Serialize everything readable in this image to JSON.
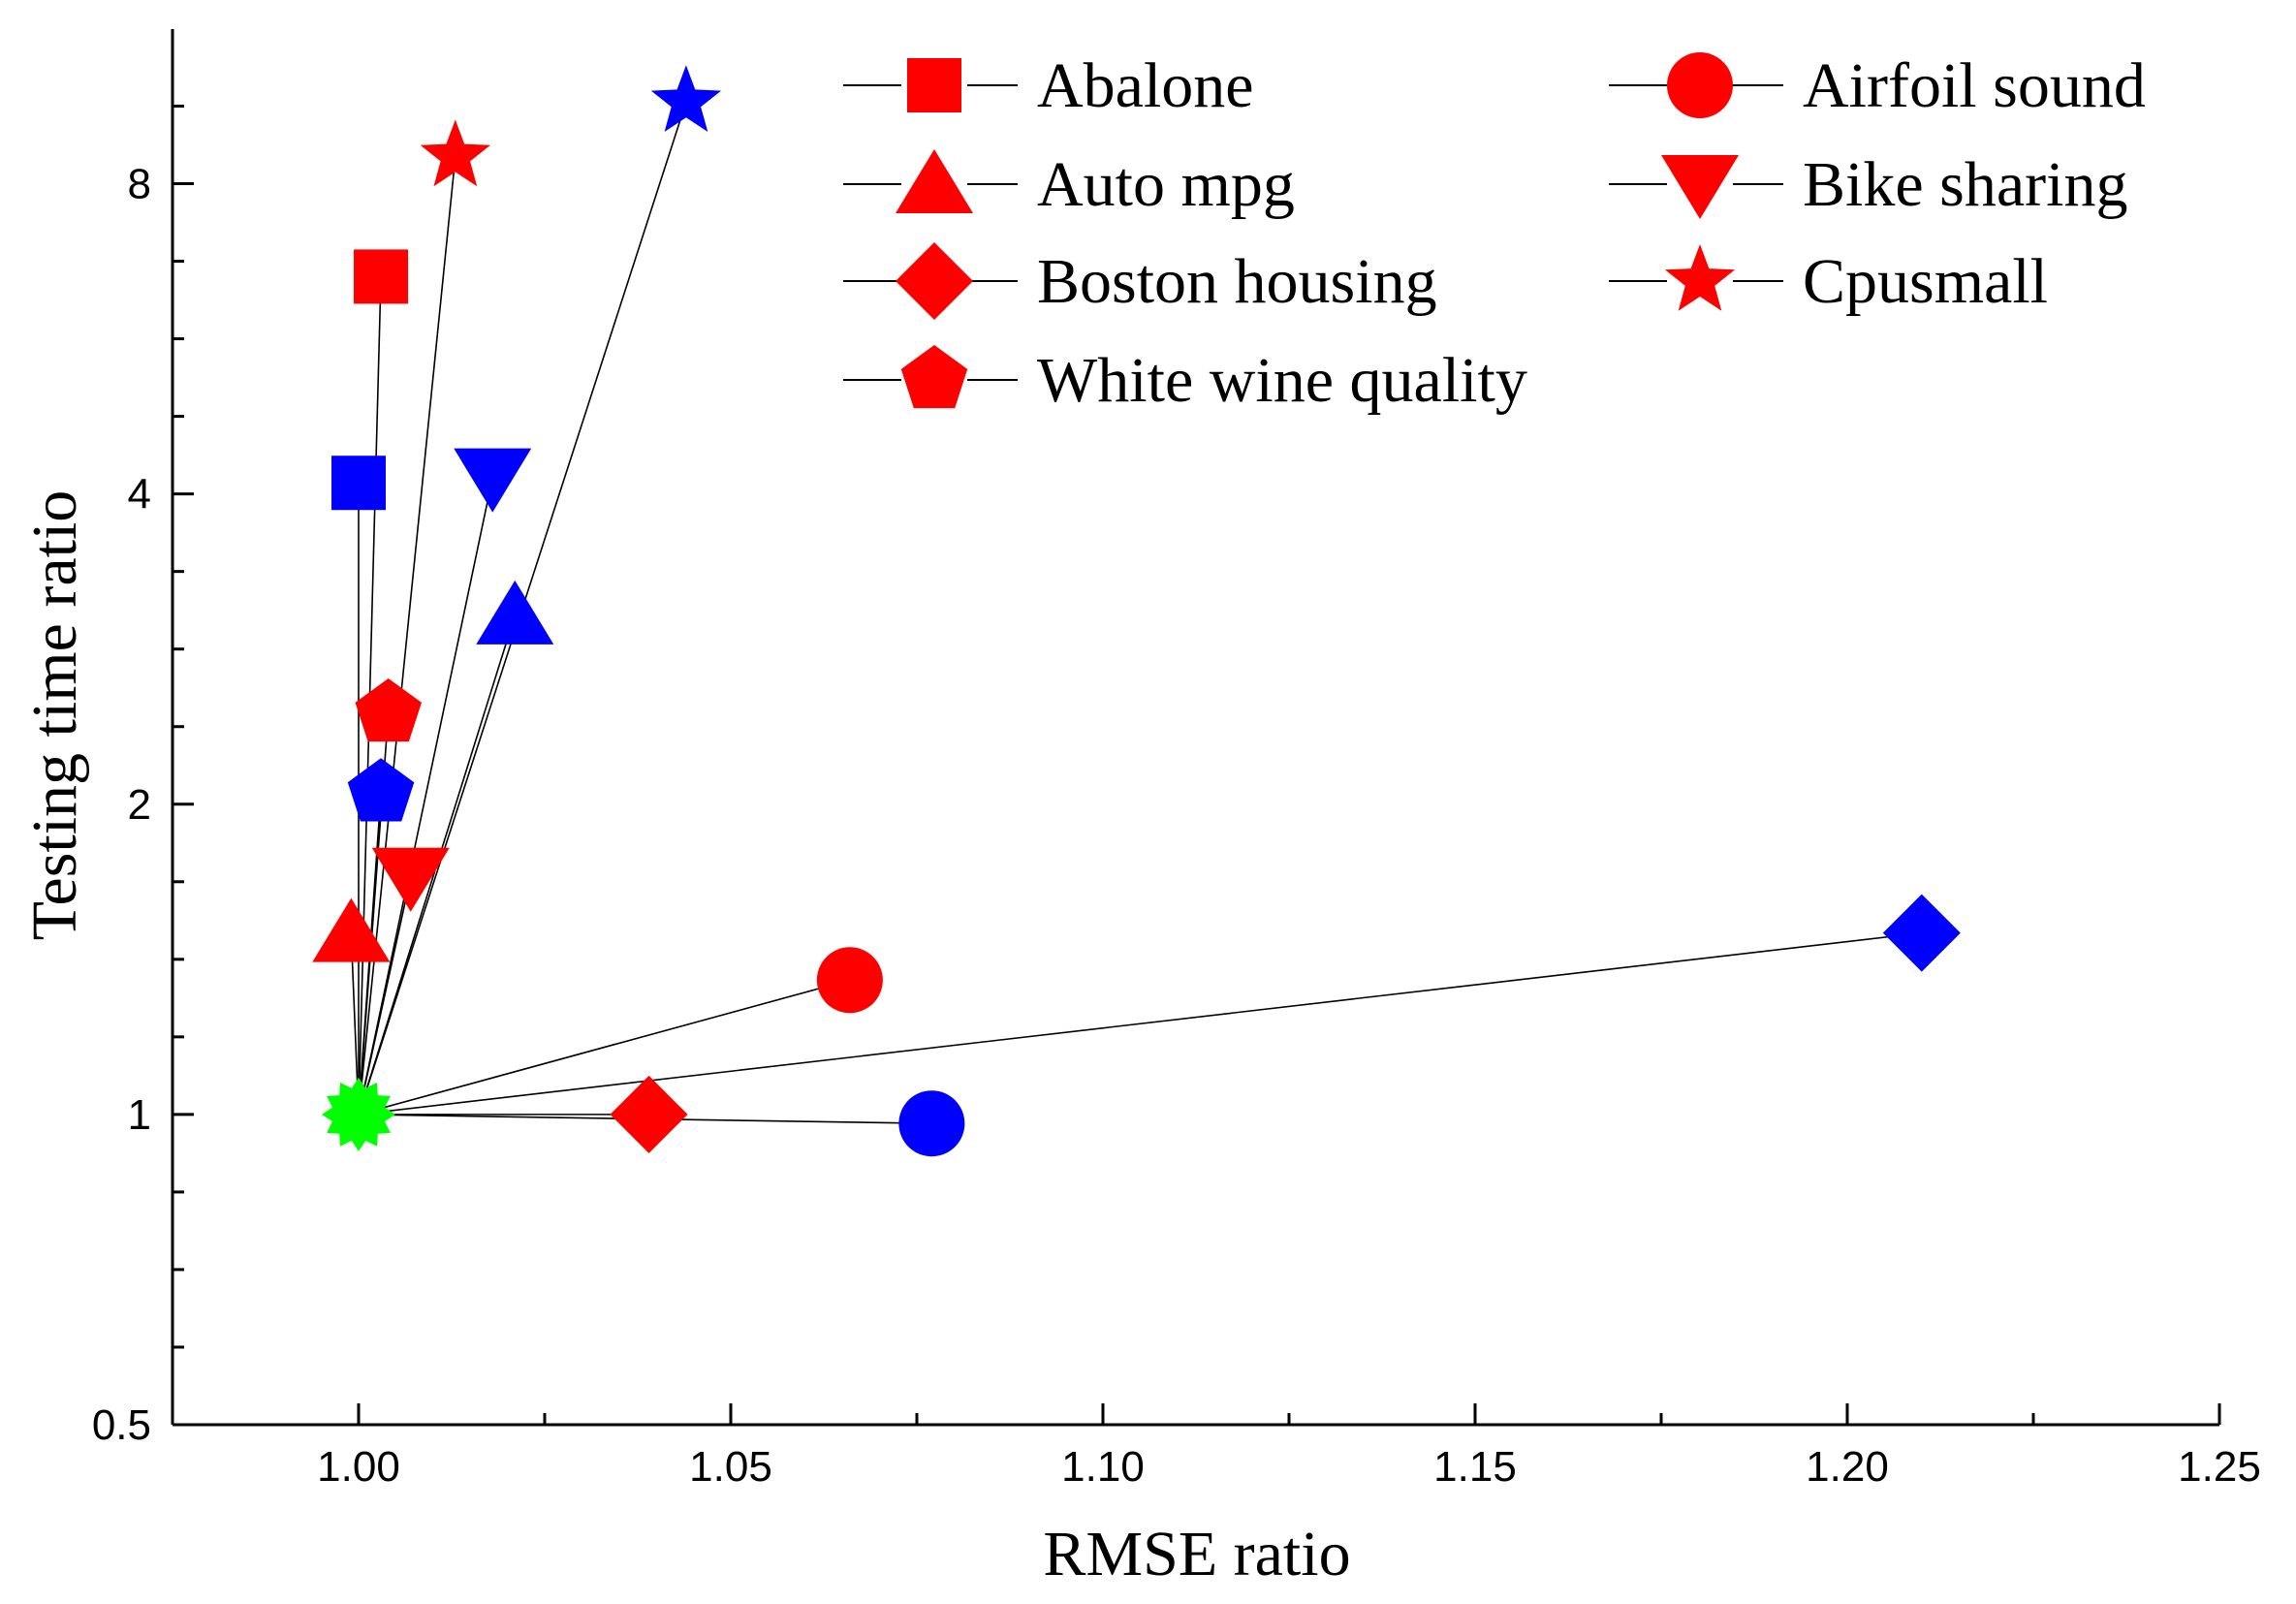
{
  "chart_data": {
    "type": "scatter",
    "xlabel": "RMSE ratio",
    "ylabel": "Testing time ratio",
    "xlim": [
      0.975,
      1.25
    ],
    "ylim": [
      0.5,
      11.3
    ],
    "yscale": "log2",
    "x_ticks": [
      {
        "value": 1.0,
        "label": "1.00"
      },
      {
        "value": 1.05,
        "label": "1.05"
      },
      {
        "value": 1.1,
        "label": "1.10"
      },
      {
        "value": 1.15,
        "label": "1.15"
      },
      {
        "value": 1.2,
        "label": "1.20"
      },
      {
        "value": 1.25,
        "label": "1.25"
      }
    ],
    "y_ticks": [
      {
        "value": 0.5,
        "label": "0.5"
      },
      {
        "value": 1,
        "label": "1"
      },
      {
        "value": 2,
        "label": "2"
      },
      {
        "value": 4,
        "label": "4"
      },
      {
        "value": 8,
        "label": "8"
      }
    ],
    "origin": {
      "x": 1.0,
      "y": 1.0,
      "color": "#00ff00"
    },
    "colors": {
      "red": "#ff0000",
      "blue": "#0000ff",
      "green": "#00ff00",
      "line": "#000000"
    },
    "legend": {
      "placement": "top-right",
      "entries": [
        {
          "label": "Abalone",
          "marker": "square"
        },
        {
          "label": "Airfoil sound",
          "marker": "circle"
        },
        {
          "label": "Auto mpg",
          "marker": "triangle-up"
        },
        {
          "label": "Bike sharing",
          "marker": "triangle-down"
        },
        {
          "label": "Boston housing",
          "marker": "diamond"
        },
        {
          "label": "Cpusmall",
          "marker": "star"
        },
        {
          "label": "White wine quality",
          "marker": "pentagon"
        }
      ]
    },
    "series": [
      {
        "name": "Abalone",
        "marker": "square",
        "points": [
          {
            "x": 1.003,
            "y": 6.5,
            "color": "red"
          },
          {
            "x": 1.0,
            "y": 4.1,
            "color": "blue"
          }
        ]
      },
      {
        "name": "Airfoil sound",
        "marker": "circle",
        "points": [
          {
            "x": 1.066,
            "y": 1.35,
            "color": "red"
          },
          {
            "x": 1.077,
            "y": 0.98,
            "color": "blue"
          }
        ]
      },
      {
        "name": "Auto mpg",
        "marker": "triangle-up",
        "points": [
          {
            "x": 0.999,
            "y": 1.5,
            "color": "red"
          },
          {
            "x": 1.021,
            "y": 3.05,
            "color": "blue"
          }
        ]
      },
      {
        "name": "Bike sharing",
        "marker": "triangle-down",
        "points": [
          {
            "x": 1.007,
            "y": 1.7,
            "color": "red"
          },
          {
            "x": 1.018,
            "y": 4.15,
            "color": "blue"
          }
        ]
      },
      {
        "name": "Boston housing",
        "marker": "diamond",
        "points": [
          {
            "x": 1.039,
            "y": 1.0,
            "color": "red"
          },
          {
            "x": 1.21,
            "y": 1.5,
            "color": "blue"
          }
        ]
      },
      {
        "name": "Cpusmall",
        "marker": "star",
        "points": [
          {
            "x": 1.013,
            "y": 8.5,
            "color": "red"
          },
          {
            "x": 1.044,
            "y": 9.6,
            "color": "blue"
          }
        ]
      },
      {
        "name": "White wine quality",
        "marker": "pentagon",
        "points": [
          {
            "x": 1.004,
            "y": 2.45,
            "color": "red"
          },
          {
            "x": 1.003,
            "y": 2.05,
            "color": "blue"
          }
        ]
      }
    ]
  }
}
